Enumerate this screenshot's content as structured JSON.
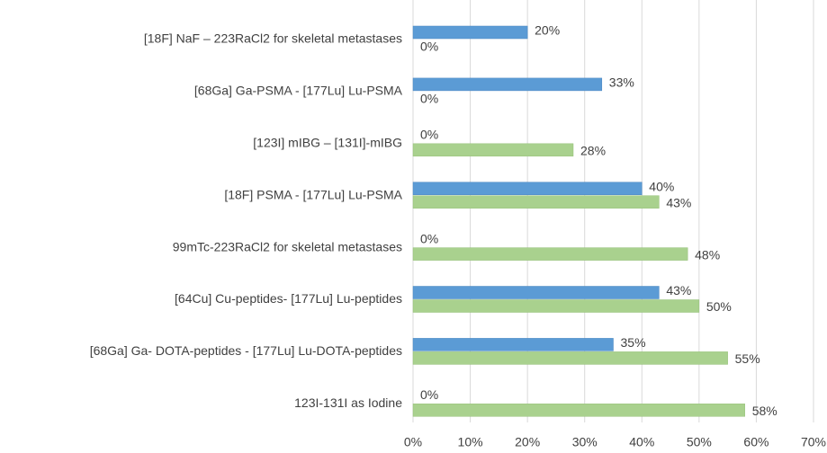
{
  "chart_data": {
    "type": "bar",
    "orientation": "horizontal",
    "categories": [
      "[18F] NaF – 223RaCl2 for skeletal metastases",
      "[68Ga] Ga-PSMA - [177Lu] Lu-PSMA",
      "[123I] mIBG – [131I]-mIBG",
      "[18F] PSMA - [177Lu] Lu-PSMA",
      "99mTc-223RaCl2 for skeletal metastases",
      "[64Cu] Cu-peptides- [177Lu] Lu-peptides",
      "[68Ga] Ga- DOTA-peptides - [177Lu] Lu-DOTA-peptides",
      "123I-131I as Iodine"
    ],
    "series": [
      {
        "color": "#5b9bd5",
        "values": [
          20,
          33,
          0,
          40,
          0,
          43,
          35,
          0
        ],
        "value_labels": [
          "20%",
          "33%",
          "0%",
          "40%",
          "0%",
          "43%",
          "35%",
          "0%"
        ]
      },
      {
        "color": "#a9d18e",
        "values": [
          0,
          0,
          28,
          43,
          48,
          50,
          55,
          58
        ],
        "value_labels": [
          "0%",
          "0%",
          "28%",
          "43%",
          "48%",
          "50%",
          "55%",
          "58%"
        ]
      }
    ],
    "xlim": [
      0,
      70
    ],
    "xticks": [
      {
        "value": 0,
        "label": "0%"
      },
      {
        "value": 10,
        "label": "10%"
      },
      {
        "value": 20,
        "label": "20%"
      },
      {
        "value": 30,
        "label": "30%"
      },
      {
        "value": 40,
        "label": "40%"
      },
      {
        "value": 50,
        "label": "50%"
      },
      {
        "value": 60,
        "label": "60%"
      },
      {
        "value": 70,
        "label": "70%"
      }
    ],
    "grid": true
  }
}
